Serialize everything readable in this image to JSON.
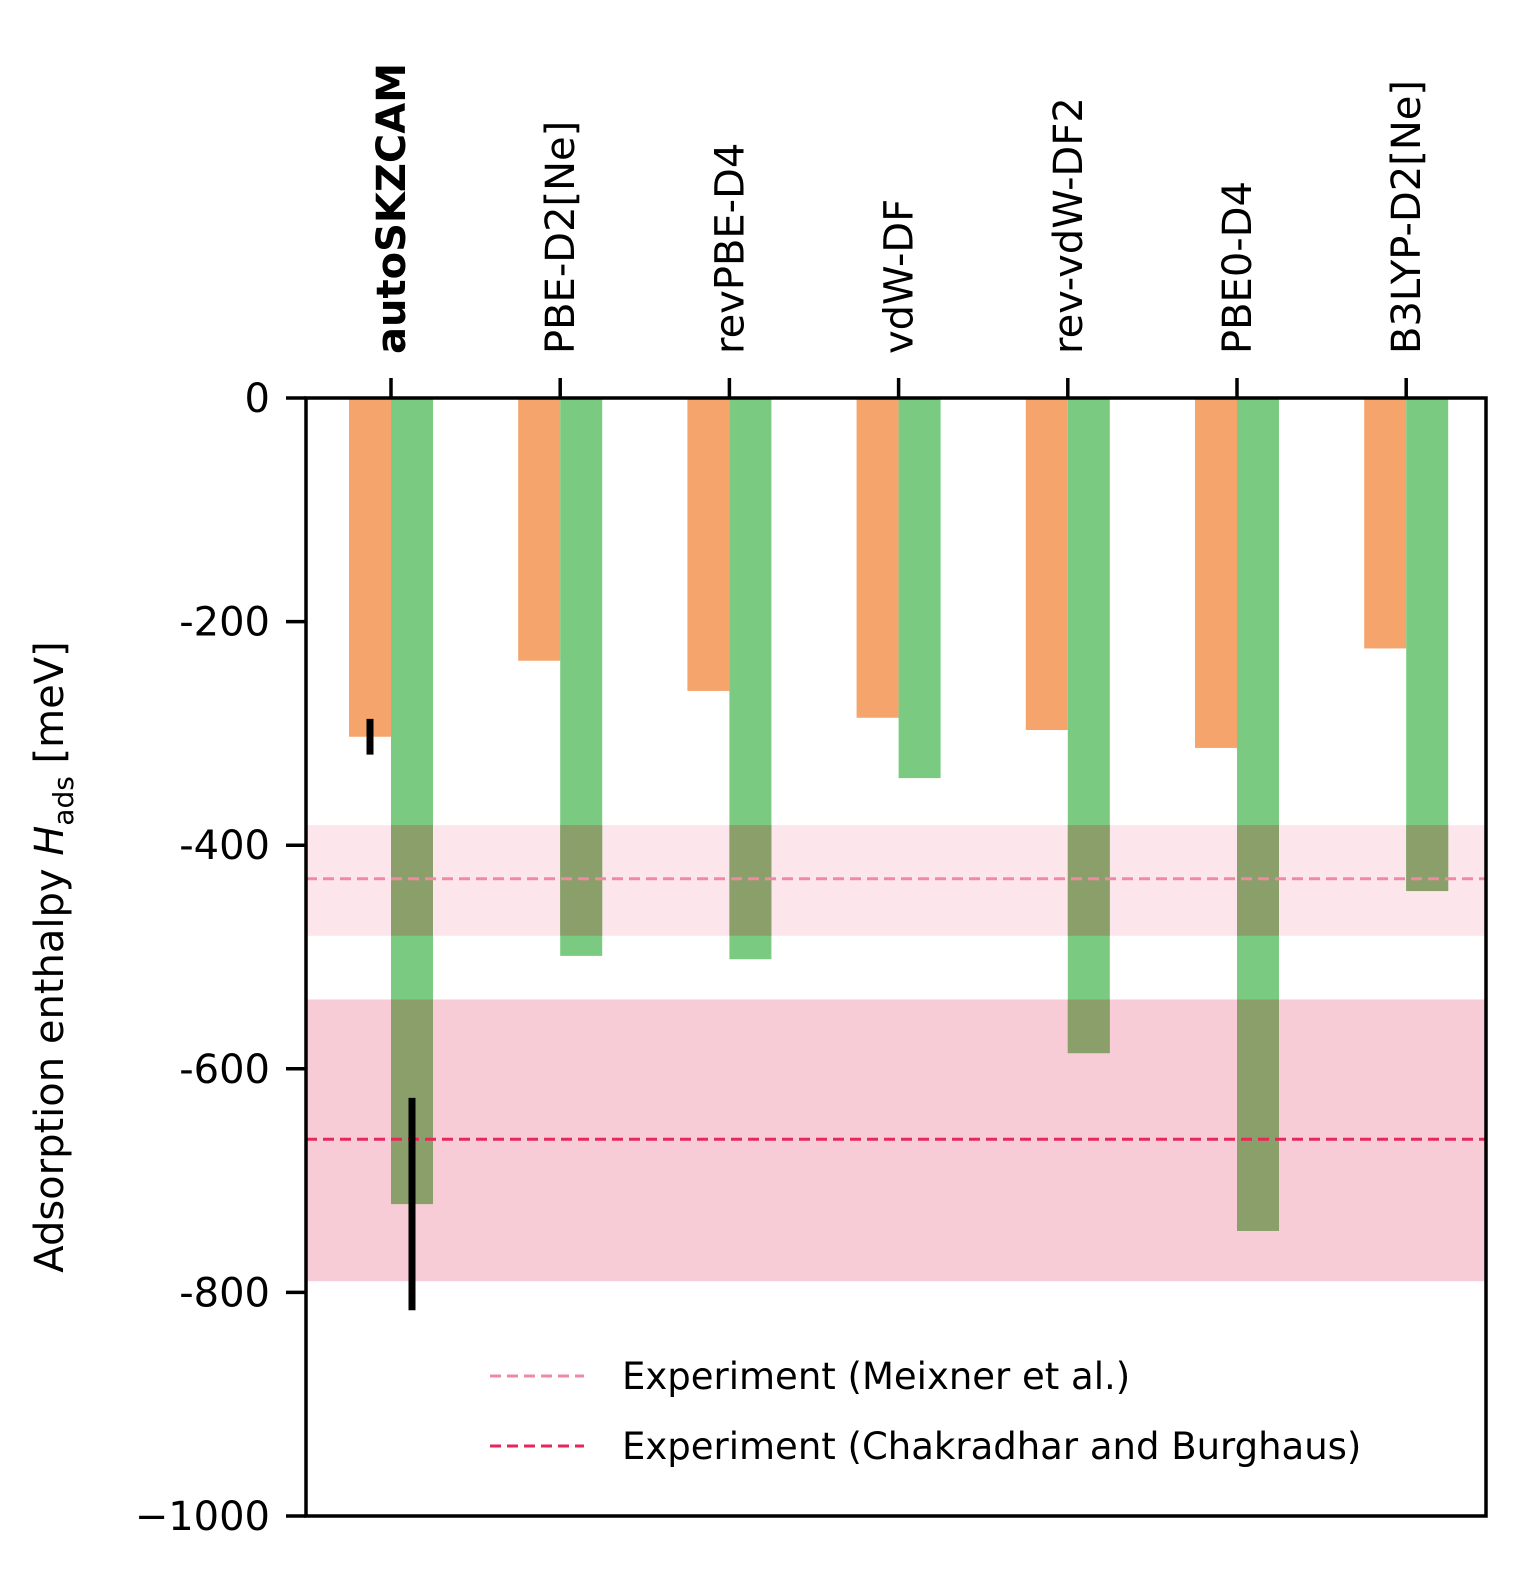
{
  "chart_data": {
    "type": "bar",
    "categories": [
      "autoSKZCAM",
      "PBE-D2[Ne]",
      "revPBE-D4",
      "vdW-DF",
      "rev-vdW-DF2",
      "PBE0-D4",
      "B3LYP-D2[Ne]"
    ],
    "highlight_category": "autoSKZCAM",
    "series": [
      {
        "color": "#f5a46c",
        "values": [
          -303,
          -235,
          -262,
          -286,
          -297,
          -313,
          -224
        ],
        "error": [
          16,
          null,
          null,
          null,
          null,
          null,
          null
        ]
      },
      {
        "color": "#76c97d",
        "values": [
          -721,
          -499,
          -502,
          -340,
          -586,
          -745,
          -441
        ],
        "error": [
          95,
          null,
          null,
          null,
          null,
          null,
          null
        ]
      }
    ],
    "ylabel": {
      "main": "Adsorption enthalpy ",
      "symbol": "H",
      "subscript": "ads",
      "unit": " [meV]"
    },
    "yticks": [
      "0",
      "-200",
      "-400",
      "-600",
      "-800",
      "−1000"
    ],
    "ytick_values": [
      0,
      -200,
      -400,
      -600,
      -800,
      -1000
    ],
    "ylim": [
      -1000,
      0
    ],
    "reference_lines": [
      {
        "name": "Experiment (Meixner et al.)",
        "value": -430,
        "band": [
          -481,
          -382
        ],
        "line_color": "#ee8aa4",
        "band_color": "#fce6ec"
      },
      {
        "name": "Experiment (Chakradhar and Burghaus)",
        "value": -663,
        "band": [
          -790,
          -538
        ],
        "line_color": "#e8265c",
        "band_color": "#f8ccd7"
      }
    ],
    "legend_position": "lower-right",
    "grid": false
  }
}
